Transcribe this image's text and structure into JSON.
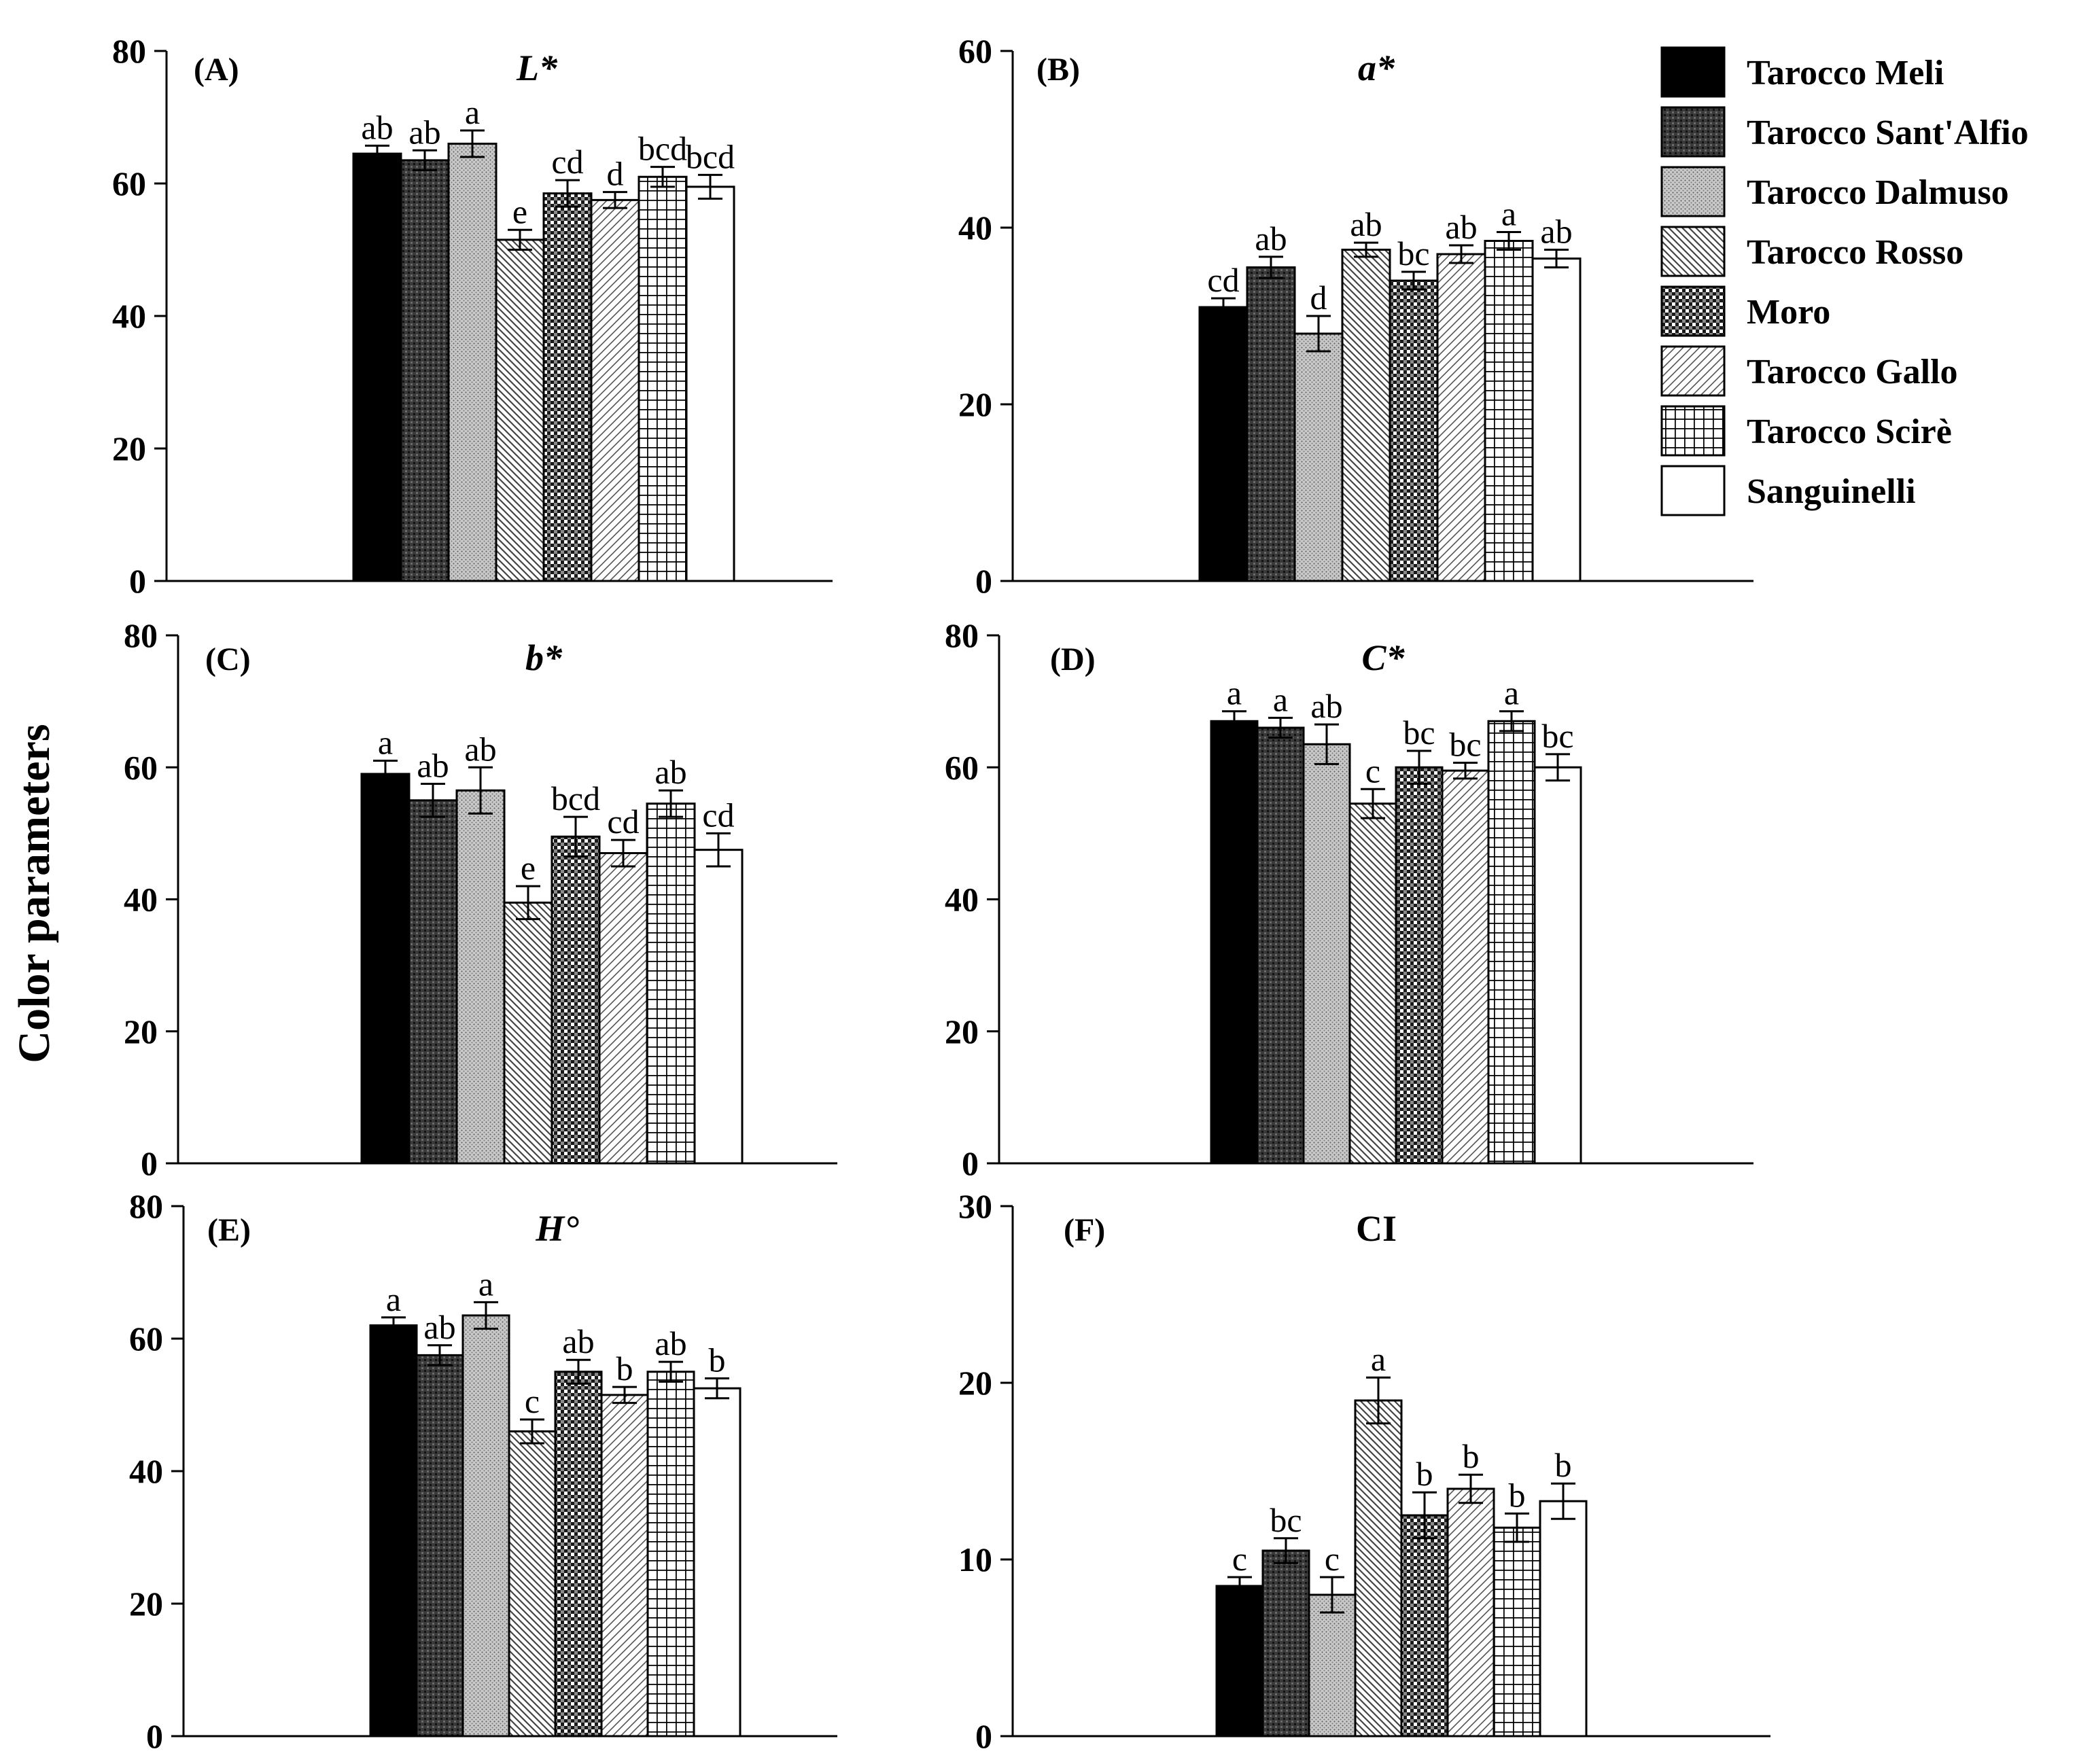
{
  "figure": {
    "ylabel": "Color parameters"
  },
  "legend": [
    {
      "name": "Tarocco Meli",
      "pattern": "solid-black"
    },
    {
      "name": "Tarocco Sant'Alfio",
      "pattern": "dark-mesh"
    },
    {
      "name": "Tarocco Dalmuso",
      "pattern": "light-dots"
    },
    {
      "name": "Tarocco Rosso",
      "pattern": "diag-left"
    },
    {
      "name": "Moro",
      "pattern": "checker"
    },
    {
      "name": "Tarocco Gallo",
      "pattern": "diag-right"
    },
    {
      "name": "Tarocco Scirè",
      "pattern": "grid"
    },
    {
      "name": "Sanguinelli",
      "pattern": "white"
    }
  ],
  "chart_data": [
    {
      "type": "bar",
      "panel": "(A)",
      "title": "L*",
      "categories": [
        "Tarocco Meli",
        "Tarocco Sant'Alfio",
        "Tarocco Dalmuso",
        "Tarocco Rosso",
        "Moro",
        "Tarocco Gallo",
        "Tarocco Scirè",
        "Sanguinelli"
      ],
      "values": [
        64.5,
        63.5,
        66,
        51.5,
        58.5,
        57.5,
        61,
        59.5
      ],
      "errors": [
        1.2,
        1.5,
        2,
        1.5,
        2,
        1.2,
        1.5,
        1.8
      ],
      "letters": [
        "ab",
        "ab",
        "a",
        "e",
        "cd",
        "d",
        "bcd",
        "bcd"
      ],
      "ylim": [
        0,
        80
      ],
      "yticks": [
        "0",
        "20",
        "40",
        "60",
        "80"
      ]
    },
    {
      "type": "bar",
      "panel": "(B)",
      "title": "a*",
      "categories": [
        "Tarocco Meli",
        "Tarocco Sant'Alfio",
        "Tarocco Dalmuso",
        "Tarocco Rosso",
        "Moro",
        "Tarocco Gallo",
        "Tarocco Scirè",
        "Sanguinelli"
      ],
      "values": [
        31,
        35.5,
        28,
        37.5,
        34,
        37,
        38.5,
        36.5
      ],
      "errors": [
        1,
        1.2,
        2,
        0.8,
        1,
        1,
        1,
        1
      ],
      "letters": [
        "cd",
        "ab",
        "d",
        "ab",
        "bc",
        "ab",
        "a",
        "ab"
      ],
      "ylim": [
        0,
        60
      ],
      "yticks": [
        "0",
        "20",
        "40",
        "60"
      ]
    },
    {
      "type": "bar",
      "panel": "(C)",
      "title": "b*",
      "categories": [
        "Tarocco Meli",
        "Tarocco Sant'Alfio",
        "Tarocco Dalmuso",
        "Tarocco Rosso",
        "Moro",
        "Tarocco Gallo",
        "Tarocco Scirè",
        "Sanguinelli"
      ],
      "values": [
        59,
        55,
        56.5,
        39.5,
        49.5,
        47,
        54.5,
        47.5
      ],
      "errors": [
        2,
        2.5,
        3.5,
        2.5,
        3,
        2,
        2,
        2.5
      ],
      "letters": [
        "a",
        "ab",
        "ab",
        "e",
        "bcd",
        "cd",
        "ab",
        "cd"
      ],
      "ylim": [
        0,
        80
      ],
      "yticks": [
        "0",
        "20",
        "40",
        "60",
        "80"
      ]
    },
    {
      "type": "bar",
      "panel": "(D)",
      "title": "C*",
      "categories": [
        "Tarocco Meli",
        "Tarocco Sant'Alfio",
        "Tarocco Dalmuso",
        "Tarocco Rosso",
        "Moro",
        "Tarocco Gallo",
        "Tarocco Scirè",
        "Sanguinelli"
      ],
      "values": [
        67,
        66,
        63.5,
        54.5,
        60,
        59.5,
        67,
        60
      ],
      "errors": [
        1.5,
        1.5,
        3,
        2.2,
        2.5,
        1.2,
        1.5,
        2
      ],
      "letters": [
        "a",
        "a",
        "ab",
        "c",
        "bc",
        "bc",
        "a",
        "bc"
      ],
      "ylim": [
        0,
        80
      ],
      "yticks": [
        "0",
        "20",
        "40",
        "60",
        "80"
      ]
    },
    {
      "type": "bar",
      "panel": "(E)",
      "title": "H°",
      "categories": [
        "Tarocco Meli",
        "Tarocco Sant'Alfio",
        "Tarocco Dalmuso",
        "Tarocco Rosso",
        "Moro",
        "Tarocco Gallo",
        "Tarocco Scirè",
        "Sanguinelli"
      ],
      "values": [
        62,
        57.5,
        63.5,
        46,
        55,
        51.5,
        55,
        52.5
      ],
      "errors": [
        1.2,
        1.5,
        2,
        1.8,
        1.8,
        1.2,
        1.5,
        1.5
      ],
      "letters": [
        "a",
        "ab",
        "a",
        "c",
        "ab",
        "b",
        "ab",
        "b"
      ],
      "ylim": [
        0,
        80
      ],
      "yticks": [
        "0",
        "20",
        "40",
        "60",
        "80"
      ]
    },
    {
      "type": "bar",
      "panel": "(F)",
      "title": "CI",
      "categories": [
        "Tarocco Meli",
        "Tarocco Sant'Alfio",
        "Tarocco Dalmuso",
        "Tarocco Rosso",
        "Moro",
        "Tarocco Gallo",
        "Tarocco Scirè",
        "Sanguinelli"
      ],
      "values": [
        8.5,
        10.5,
        8,
        19,
        12.5,
        14,
        11.8,
        13.3
      ],
      "errors": [
        0.5,
        0.7,
        1,
        1.3,
        1.3,
        0.8,
        0.8,
        1
      ],
      "letters": [
        "c",
        "bc",
        "c",
        "a",
        "b",
        "b",
        "b",
        "b"
      ],
      "ylim": [
        0,
        30
      ],
      "yticks": [
        "0",
        "10",
        "20",
        "30"
      ]
    }
  ]
}
